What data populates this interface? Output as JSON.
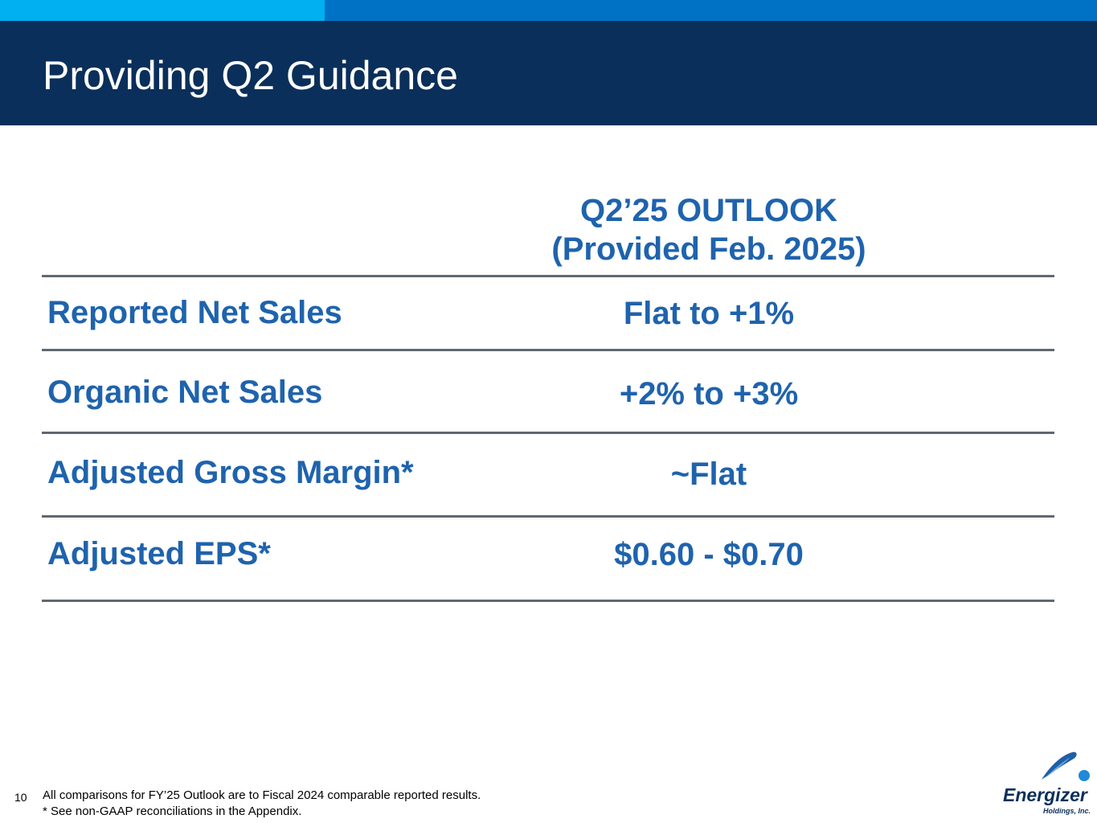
{
  "header": {
    "title": "Providing Q2 Guidance"
  },
  "table": {
    "column_header": {
      "line1": "Q2’25 OUTLOOK",
      "line2": "(Provided Feb. 2025)"
    },
    "rows": [
      {
        "label": "Reported Net Sales",
        "value": "Flat to +1%"
      },
      {
        "label": "Organic Net Sales",
        "value": "+2% to +3%"
      },
      {
        "label": "Adjusted Gross Margin*",
        "value": "~Flat"
      },
      {
        "label": "Adjusted EPS*",
        "value": "$0.60 - $0.70"
      }
    ]
  },
  "footer": {
    "page_number": "10",
    "note1": "All comparisons for FY’25 Outlook are to Fiscal 2024 comparable reported results.",
    "note2": "* See non-GAAP reconciliations in the Appendix.",
    "logo_name": "Energizer",
    "logo_sub": "Holdings, Inc."
  },
  "colors": {
    "header_bg": "#0a2f5a",
    "accent_blue": "#0072c6",
    "accent_light": "#00b0f0",
    "text_blue": "#1f63ad",
    "rule_gray": "#5f6871"
  }
}
